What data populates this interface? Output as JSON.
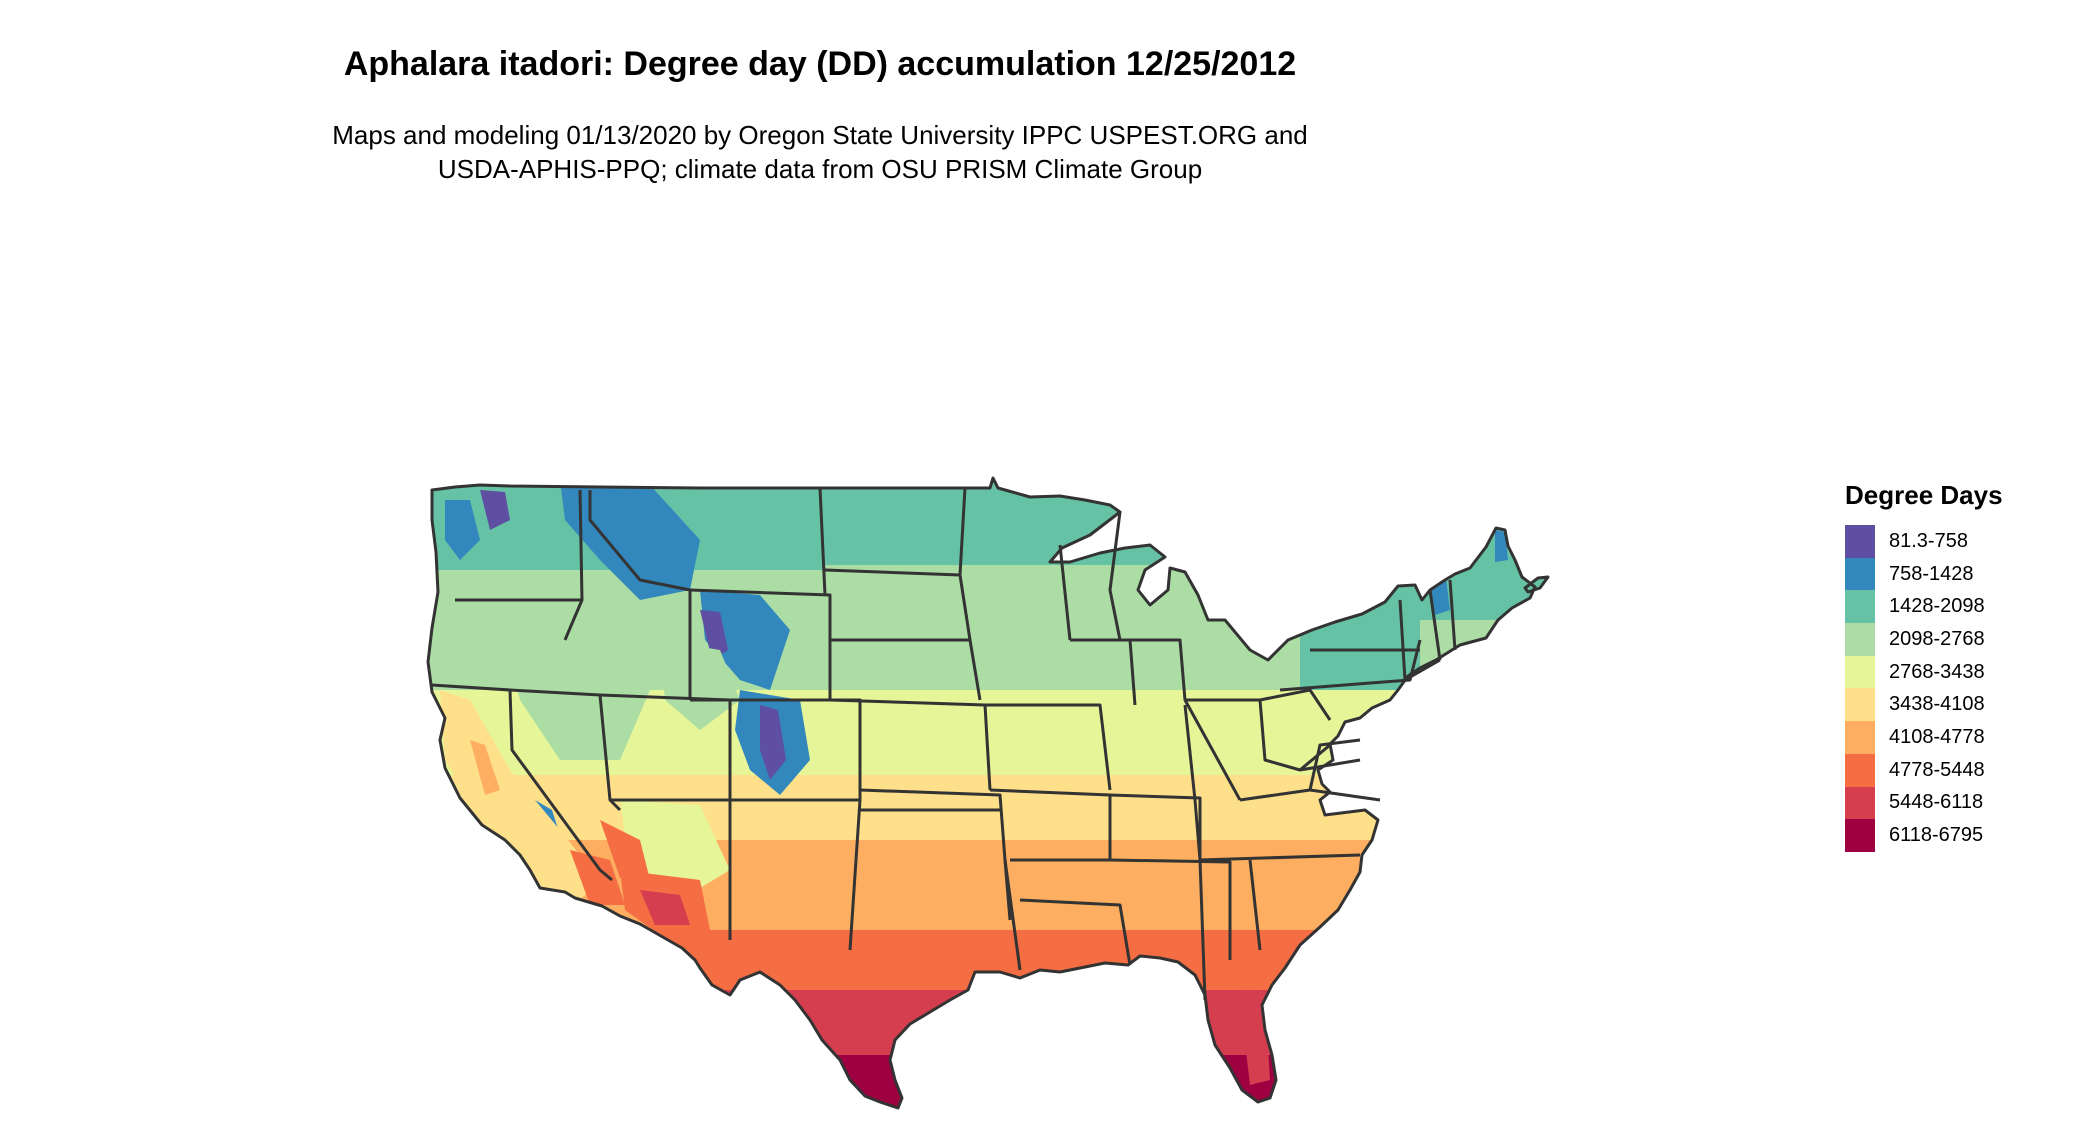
{
  "title": "Aphalara itadori: Degree day (DD) accumulation 12/25/2012",
  "subtitle": {
    "line1": "Maps and modeling 01/13/2020 by Oregon State University IPPC USPEST.ORG and",
    "line2": "USDA-APHIS-PPQ; climate data from OSU PRISM Climate Group"
  },
  "map": {
    "region": "Contiguous United States",
    "state_boundary_color": "#333333"
  },
  "legend": {
    "title": "Degree Days",
    "items": [
      {
        "label": "81.3-758",
        "color": "#5E4FA2"
      },
      {
        "label": "758-1428",
        "color": "#3288BD"
      },
      {
        "label": "1428-2098",
        "color": "#66C2A5"
      },
      {
        "label": "2098-2768",
        "color": "#ABDDA4"
      },
      {
        "label": "2768-3438",
        "color": "#E6F598"
      },
      {
        "label": "3438-4108",
        "color": "#FEE08B"
      },
      {
        "label": "4108-4778",
        "color": "#FDAE61"
      },
      {
        "label": "4778-5448",
        "color": "#F46D43"
      },
      {
        "label": "5448-6118",
        "color": "#D53E4F"
      },
      {
        "label": "6118-6795",
        "color": "#9E0142"
      }
    ]
  }
}
